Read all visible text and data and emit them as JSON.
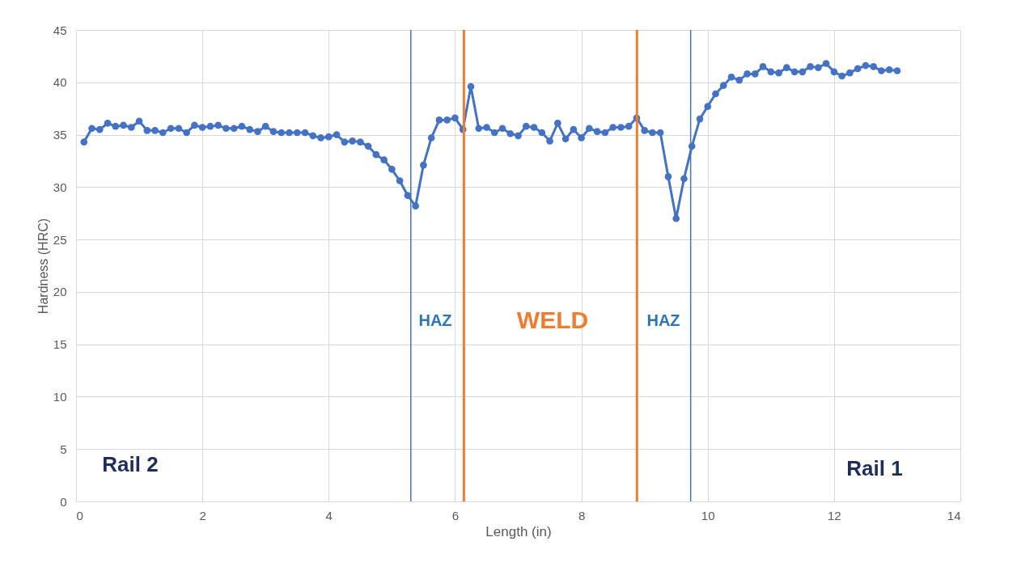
{
  "chart_data": {
    "type": "line",
    "xlabel": "Length (in)",
    "ylabel": "Hardness (HRC)",
    "x": [
      0.125,
      0.25,
      0.375,
      0.5,
      0.625,
      0.75,
      0.875,
      1.0,
      1.125,
      1.25,
      1.375,
      1.5,
      1.625,
      1.75,
      1.875,
      2.0,
      2.125,
      2.25,
      2.375,
      2.5,
      2.625,
      2.75,
      2.875,
      3.0,
      3.125,
      3.25,
      3.375,
      3.5,
      3.625,
      3.75,
      3.875,
      4.0,
      4.125,
      4.25,
      4.375,
      4.5,
      4.625,
      4.75,
      4.875,
      5.0,
      5.125,
      5.25,
      5.375,
      5.5,
      5.625,
      5.75,
      5.875,
      6.0,
      6.125,
      6.25,
      6.375,
      6.5,
      6.625,
      6.75,
      6.875,
      7.0,
      7.125,
      7.25,
      7.375,
      7.5,
      7.625,
      7.75,
      7.875,
      8.0,
      8.125,
      8.25,
      8.375,
      8.5,
      8.625,
      8.75,
      8.875,
      9.0,
      9.125,
      9.25,
      9.375,
      9.5,
      9.625,
      9.75,
      9.875,
      10.0,
      10.125,
      10.25,
      10.375,
      10.5,
      10.625,
      10.75,
      10.875,
      11.0,
      11.125,
      11.25,
      11.375,
      11.5,
      11.625,
      11.75,
      11.875,
      12.0,
      12.125,
      12.25,
      12.375,
      12.5,
      12.625,
      12.75,
      12.875,
      13.0
    ],
    "series": [
      {
        "color": "#4472c4",
        "values": [
          34.3,
          35.6,
          35.5,
          36.1,
          35.8,
          35.9,
          35.7,
          36.3,
          35.4,
          35.4,
          35.2,
          35.6,
          35.6,
          35.2,
          35.9,
          35.7,
          35.8,
          35.9,
          35.6,
          35.6,
          35.8,
          35.5,
          35.3,
          35.8,
          35.3,
          35.2,
          35.2,
          35.2,
          35.2,
          34.9,
          34.7,
          34.8,
          35.0,
          34.3,
          34.4,
          34.3,
          33.9,
          33.1,
          32.6,
          31.7,
          30.6,
          29.2,
          28.2,
          32.1,
          34.7,
          36.4,
          36.4,
          36.6,
          35.5,
          39.6,
          35.6,
          35.7,
          35.2,
          35.6,
          35.1,
          34.9,
          35.8,
          35.7,
          35.2,
          34.4,
          36.1,
          34.6,
          35.5,
          34.7,
          35.6,
          35.3,
          35.2,
          35.7,
          35.7,
          35.8,
          36.6,
          35.4,
          35.2,
          35.2,
          31.0,
          27.0,
          30.8,
          33.9,
          36.5,
          37.7,
          38.9,
          39.7,
          40.5,
          40.2,
          40.8,
          40.8,
          41.5,
          41.0,
          40.9,
          41.4,
          41.0,
          41.0,
          41.5,
          41.4,
          41.8,
          41.0,
          40.6,
          40.9,
          41.3,
          41.6,
          41.5,
          41.1,
          41.2,
          41.1
        ]
      }
    ],
    "xlim": [
      0,
      14
    ],
    "xticks": [
      0,
      2,
      4,
      6,
      8,
      10,
      12,
      14
    ],
    "ylim": [
      0,
      45
    ],
    "yticks": [
      0,
      5,
      10,
      15,
      20,
      25,
      30,
      35,
      40,
      45
    ],
    "grid": true,
    "marker": "circle",
    "line_style": "solid",
    "ref_lines": [
      {
        "axis": "x",
        "value": 5.3,
        "color": "#4472c4"
      },
      {
        "axis": "x",
        "value": 6.14,
        "color": "#ed7d31"
      },
      {
        "axis": "x",
        "value": 8.88,
        "color": "#ed7d31"
      },
      {
        "axis": "x",
        "value": 9.73,
        "color": "#4472c4"
      }
    ],
    "annotations": [
      "HAZ",
      "WELD",
      "HAZ",
      "Rail 2",
      "Rail 1"
    ]
  }
}
